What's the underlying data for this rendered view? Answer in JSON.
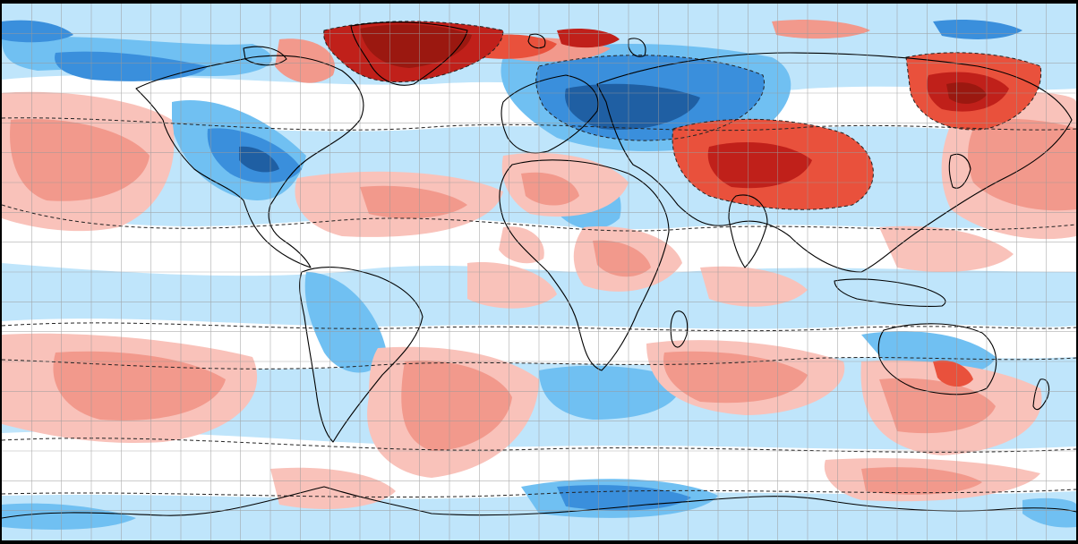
{
  "map": {
    "type": "global-anomaly-map",
    "projection": "equirectangular",
    "extent": {
      "lon": [
        -180,
        180
      ],
      "lat": [
        -90,
        90
      ]
    },
    "graticule_step_deg": 10,
    "palette": {
      "strong_negative": "#1f5fa3",
      "negative": "#3a8fdc",
      "moderate_negative": "#70c0f2",
      "weak_negative": "#bfe5fb",
      "neutral": "#ffffff",
      "weak_positive": "#f9c2ba",
      "moderate_positive": "#f2998c",
      "positive": "#e9513c",
      "strong_positive": "#c0201a",
      "extreme_positive": "#9b1810",
      "contour_line": "#222222",
      "coastline": "#000000",
      "grid_line": "#9a9a9a"
    },
    "anomaly_regions": [
      {
        "name": "greenland",
        "sign": "positive",
        "level": "extreme"
      },
      {
        "name": "scandinavia-western-russia",
        "sign": "negative",
        "level": "strong"
      },
      {
        "name": "central-asia-mongolia",
        "sign": "positive",
        "level": "strong"
      },
      {
        "name": "eastern-siberia",
        "sign": "positive",
        "level": "strong"
      },
      {
        "name": "canada-eastern-usa",
        "sign": "negative",
        "level": "moderate"
      },
      {
        "name": "north-pacific",
        "sign": "positive",
        "level": "moderate"
      },
      {
        "name": "tropical-atlantic",
        "sign": "positive",
        "level": "weak"
      },
      {
        "name": "west-africa",
        "sign": "positive",
        "level": "weak"
      },
      {
        "name": "south-pacific",
        "sign": "positive",
        "level": "moderate"
      },
      {
        "name": "south-atlantic",
        "sign": "positive",
        "level": "moderate"
      },
      {
        "name": "south-indian-ocean",
        "sign": "positive",
        "level": "moderate"
      },
      {
        "name": "southern-ocean-south-of-africa",
        "sign": "negative",
        "level": "moderate"
      },
      {
        "name": "australia-east",
        "sign": "positive",
        "level": "weak"
      },
      {
        "name": "tasman-sea",
        "sign": "positive",
        "level": "moderate"
      }
    ]
  }
}
